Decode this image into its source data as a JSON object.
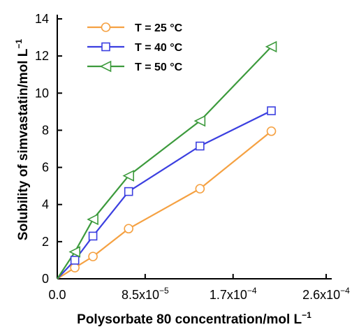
{
  "chart_data": {
    "type": "line",
    "xlabel": "Polysorbate 80 concentration/mol L",
    "xlabel_sup": "−1",
    "ylabel": "Solubility of simvastatin/mol L",
    "ylabel_sup": "−1",
    "xlim": [
      0,
      0.00026
    ],
    "ylim": [
      0,
      14
    ],
    "x_ticks": [
      {
        "value": 0,
        "mantissa": "0.0",
        "exp": ""
      },
      {
        "value": 8.5e-05,
        "mantissa": "8.5x10",
        "exp": "−5"
      },
      {
        "value": 0.00017,
        "mantissa": "1.7x10",
        "exp": "−4"
      },
      {
        "value": 0.00026,
        "mantissa": "2.6x10",
        "exp": "−4"
      }
    ],
    "y_ticks": [
      0,
      2,
      4,
      6,
      8,
      10,
      12,
      14
    ],
    "grid": false,
    "legend_position": "top-left",
    "series": [
      {
        "name": "T = 25 °C",
        "color": "#f5a142",
        "marker": "circle",
        "x": [
          0,
          1.7e-05,
          3.45e-05,
          6.9e-05,
          0.000138,
          0.000207
        ],
        "y": [
          0,
          0.6,
          1.2,
          2.7,
          4.85,
          7.95
        ]
      },
      {
        "name": "T = 40 °C",
        "color": "#3b3fe0",
        "marker": "square",
        "x": [
          0,
          1.7e-05,
          3.45e-05,
          6.9e-05,
          0.000138,
          0.000207
        ],
        "y": [
          0,
          1.0,
          2.3,
          4.7,
          7.15,
          9.05
        ]
      },
      {
        "name": "T = 50 °C",
        "color": "#3c9a3c",
        "marker": "triangle-left",
        "x": [
          0,
          1.7e-05,
          3.45e-05,
          6.9e-05,
          0.000138,
          0.000207
        ],
        "y": [
          0,
          1.45,
          3.2,
          5.55,
          8.5,
          12.5
        ]
      }
    ]
  }
}
